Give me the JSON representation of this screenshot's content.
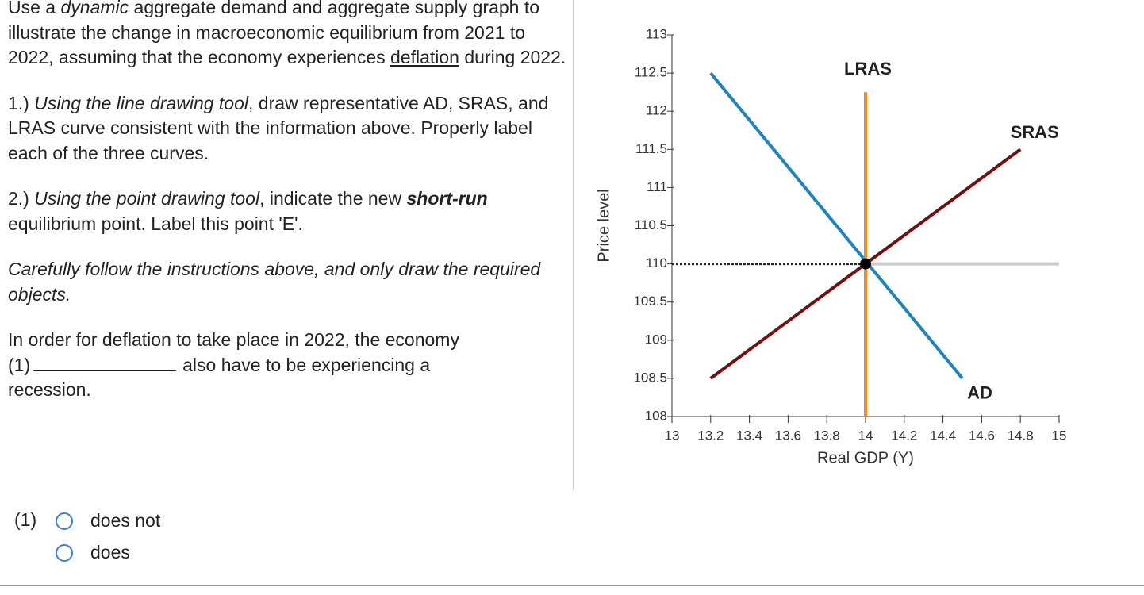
{
  "question": {
    "intro": [
      "Use a ",
      "dynamic",
      " aggregate demand and aggregate supply graph to illustrate the change in macroeconomic equilibrium from 2021 to 2022, assuming that the economy experiences ",
      "deflation",
      " during 2022."
    ],
    "step1": [
      "1.) ",
      "Using the line drawing tool",
      ", draw representative AD, SRAS, and LRAS curve consistent with the information above. Properly label each of the three curves."
    ],
    "step2": [
      "2.) ",
      "Using the point drawing tool",
      ", indicate the new ",
      "short-run",
      " equilibrium point. Label this point 'E'."
    ],
    "caution": "Carefully follow the instructions above, and only draw the required objects.",
    "prompt": "In order for deflation to take place in 2022, the economy",
    "blank_label": "(1)",
    "prompt_end": "also have to be experiencing a recession."
  },
  "answer": {
    "label": "(1)",
    "options": [
      "does not",
      "does"
    ]
  },
  "chart_data": {
    "type": "line",
    "xlabel": "Real GDP (Y)",
    "ylabel": "Price level",
    "xlim": [
      13,
      15
    ],
    "ylim": [
      108,
      113
    ],
    "xticks": [
      13,
      13.2,
      13.4,
      13.6,
      13.8,
      14,
      14.2,
      14.4,
      14.6,
      14.8,
      15
    ],
    "yticks": [
      108,
      108.5,
      109,
      109.5,
      110,
      110.5,
      111,
      111.5,
      112,
      112.5,
      113
    ],
    "series": [
      {
        "name": "AD",
        "color": "#1f84bd",
        "x": [
          13.2,
          14.5
        ],
        "values": [
          112.5,
          108.5
        ]
      },
      {
        "name": "SRAS",
        "color": "#7a0c0c",
        "x": [
          13.2,
          14.8
        ],
        "values": [
          108.5,
          111.5
        ]
      },
      {
        "name": "LRAS",
        "color": "#f28c28",
        "x": [
          14,
          14
        ],
        "values": [
          108,
          112.25
        ]
      }
    ],
    "point": {
      "x": 14,
      "y": 110,
      "color": "#000000"
    }
  }
}
